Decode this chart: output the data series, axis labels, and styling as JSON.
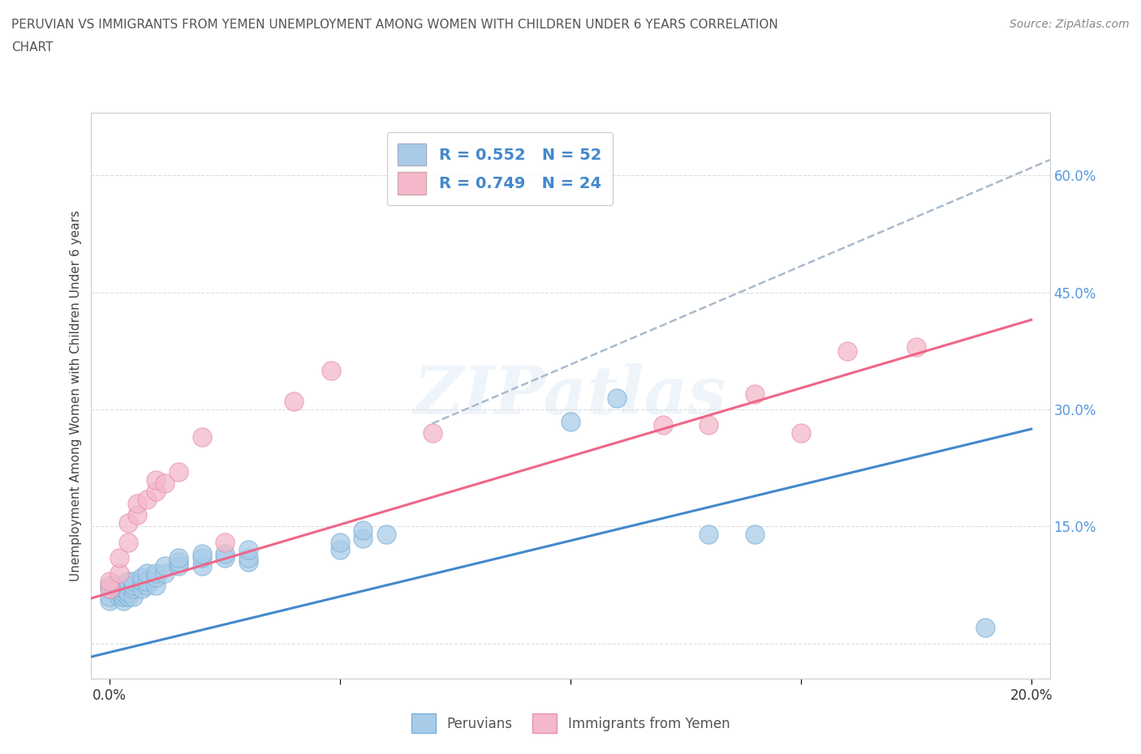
{
  "title_line1": "PERUVIAN VS IMMIGRANTS FROM YEMEN UNEMPLOYMENT AMONG WOMEN WITH CHILDREN UNDER 6 YEARS CORRELATION",
  "title_line2": "CHART",
  "source": "Source: ZipAtlas.com",
  "ylabel": "Unemployment Among Women with Children Under 6 years",
  "xlim": [
    -0.004,
    0.204
  ],
  "ylim": [
    -0.045,
    0.68
  ],
  "peruvian_color": "#a8cce8",
  "peruvian_edge": "#7ab0d8",
  "yemen_color": "#f4b8ca",
  "yemen_edge": "#e890aa",
  "peruvian_line_color": "#4488cc",
  "yemen_line_color": "#ee6688",
  "dashed_line_color": "#aabbcc",
  "r_peruvian": 0.552,
  "n_peruvian": 52,
  "r_yemen": 0.749,
  "n_yemen": 24,
  "peruvian_scatter": [
    [
      0.0,
      0.055
    ],
    [
      0.0,
      0.06
    ],
    [
      0.0,
      0.07
    ],
    [
      0.0,
      0.075
    ],
    [
      0.002,
      0.06
    ],
    [
      0.002,
      0.065
    ],
    [
      0.002,
      0.07
    ],
    [
      0.002,
      0.075
    ],
    [
      0.003,
      0.055
    ],
    [
      0.003,
      0.06
    ],
    [
      0.003,
      0.065
    ],
    [
      0.003,
      0.07
    ],
    [
      0.004,
      0.06
    ],
    [
      0.004,
      0.065
    ],
    [
      0.004,
      0.075
    ],
    [
      0.004,
      0.08
    ],
    [
      0.005,
      0.06
    ],
    [
      0.005,
      0.07
    ],
    [
      0.005,
      0.075
    ],
    [
      0.005,
      0.08
    ],
    [
      0.007,
      0.07
    ],
    [
      0.007,
      0.08
    ],
    [
      0.007,
      0.085
    ],
    [
      0.008,
      0.075
    ],
    [
      0.008,
      0.08
    ],
    [
      0.008,
      0.09
    ],
    [
      0.01,
      0.075
    ],
    [
      0.01,
      0.085
    ],
    [
      0.01,
      0.09
    ],
    [
      0.012,
      0.09
    ],
    [
      0.012,
      0.1
    ],
    [
      0.015,
      0.1
    ],
    [
      0.015,
      0.105
    ],
    [
      0.015,
      0.11
    ],
    [
      0.02,
      0.1
    ],
    [
      0.02,
      0.11
    ],
    [
      0.02,
      0.115
    ],
    [
      0.025,
      0.11
    ],
    [
      0.025,
      0.115
    ],
    [
      0.03,
      0.105
    ],
    [
      0.03,
      0.11
    ],
    [
      0.03,
      0.12
    ],
    [
      0.05,
      0.12
    ],
    [
      0.05,
      0.13
    ],
    [
      0.055,
      0.135
    ],
    [
      0.055,
      0.145
    ],
    [
      0.06,
      0.14
    ],
    [
      0.1,
      0.285
    ],
    [
      0.11,
      0.315
    ],
    [
      0.13,
      0.14
    ],
    [
      0.14,
      0.14
    ],
    [
      0.19,
      0.02
    ]
  ],
  "yemen_scatter": [
    [
      0.0,
      0.07
    ],
    [
      0.0,
      0.08
    ],
    [
      0.002,
      0.09
    ],
    [
      0.002,
      0.11
    ],
    [
      0.004,
      0.13
    ],
    [
      0.004,
      0.155
    ],
    [
      0.006,
      0.165
    ],
    [
      0.006,
      0.18
    ],
    [
      0.008,
      0.185
    ],
    [
      0.01,
      0.195
    ],
    [
      0.01,
      0.21
    ],
    [
      0.012,
      0.205
    ],
    [
      0.015,
      0.22
    ],
    [
      0.02,
      0.265
    ],
    [
      0.025,
      0.13
    ],
    [
      0.04,
      0.31
    ],
    [
      0.048,
      0.35
    ],
    [
      0.07,
      0.27
    ],
    [
      0.12,
      0.28
    ],
    [
      0.13,
      0.28
    ],
    [
      0.14,
      0.32
    ],
    [
      0.15,
      0.27
    ],
    [
      0.16,
      0.375
    ],
    [
      0.175,
      0.38
    ]
  ],
  "peruvian_line": [
    [
      -0.004,
      -0.017
    ],
    [
      0.2,
      0.275
    ]
  ],
  "yemen_line": [
    [
      -0.004,
      0.058
    ],
    [
      0.2,
      0.415
    ]
  ],
  "dashed_line": [
    [
      0.07,
      0.282
    ],
    [
      0.204,
      0.62
    ]
  ],
  "watermark": "ZIPatlas",
  "background_color": "#ffffff",
  "grid_color": "#dddddd"
}
